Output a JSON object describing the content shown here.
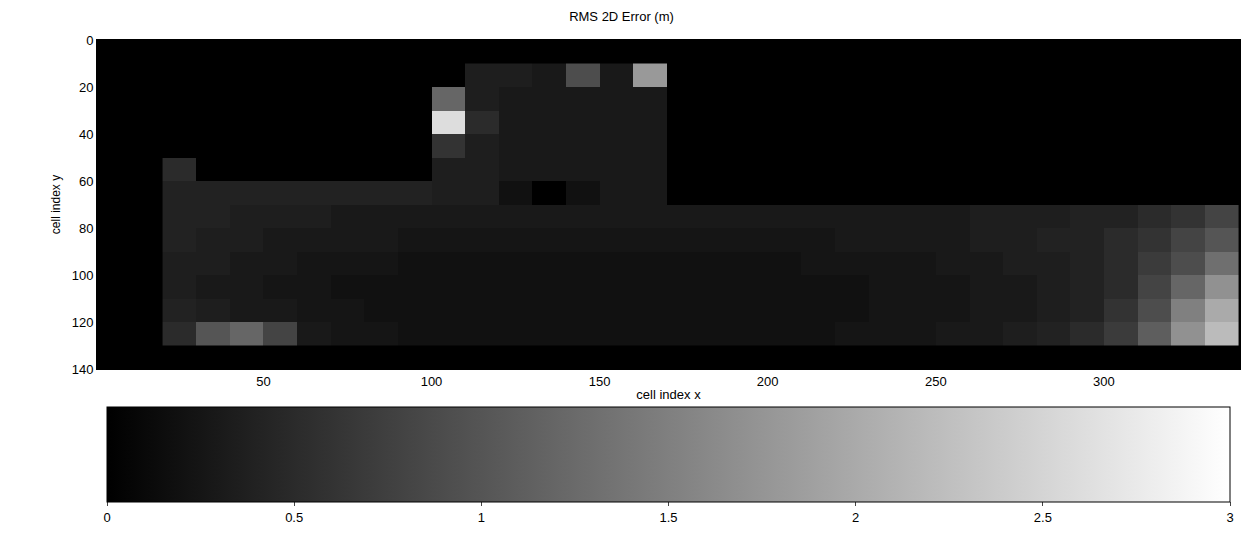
{
  "chart_data": {
    "type": "heatmap",
    "title": "RMS 2D Error (m)",
    "x_label": "cell index x",
    "y_label": "cell index y",
    "x": [
      25,
      35,
      45,
      55,
      65,
      75,
      85,
      95,
      105,
      115,
      125,
      135,
      145,
      155,
      165,
      175,
      185,
      195,
      205,
      215,
      225,
      235,
      245,
      255,
      265,
      275,
      285,
      295,
      305,
      315,
      325,
      335
    ],
    "y": [
      15,
      25,
      35,
      45,
      55,
      65,
      75,
      85,
      95,
      105,
      115,
      125
    ],
    "cells": [
      [
        null,
        null,
        null,
        null,
        null,
        null,
        null,
        null,
        null,
        0.35,
        0.35,
        0.3,
        0.9,
        0.3,
        1.8,
        null,
        null,
        null,
        null,
        null,
        null,
        null,
        null,
        null,
        null,
        null,
        null,
        null,
        null,
        null,
        null,
        null
      ],
      [
        null,
        null,
        null,
        null,
        null,
        null,
        null,
        null,
        1.2,
        0.35,
        0.3,
        0.3,
        0.3,
        0.3,
        0.3,
        null,
        null,
        null,
        null,
        null,
        null,
        null,
        null,
        null,
        null,
        null,
        null,
        null,
        null,
        null,
        null,
        null
      ],
      [
        null,
        null,
        null,
        null,
        null,
        null,
        null,
        null,
        2.6,
        0.5,
        0.3,
        0.3,
        0.3,
        0.3,
        0.3,
        null,
        null,
        null,
        null,
        null,
        null,
        null,
        null,
        null,
        null,
        null,
        null,
        null,
        null,
        null,
        null,
        null
      ],
      [
        null,
        null,
        null,
        null,
        null,
        null,
        null,
        null,
        0.6,
        0.35,
        0.3,
        0.3,
        0.3,
        0.3,
        0.3,
        null,
        null,
        null,
        null,
        null,
        null,
        null,
        null,
        null,
        null,
        null,
        null,
        null,
        null,
        null,
        null,
        null
      ],
      [
        0.5,
        null,
        null,
        null,
        null,
        null,
        null,
        null,
        0.35,
        0.35,
        0.3,
        0.3,
        0.3,
        0.3,
        0.3,
        null,
        null,
        null,
        null,
        null,
        null,
        null,
        null,
        null,
        null,
        null,
        null,
        null,
        null,
        null,
        null,
        null
      ],
      [
        0.4,
        0.4,
        0.4,
        0.4,
        0.4,
        0.4,
        0.4,
        0.4,
        0.35,
        0.35,
        0.2,
        null,
        0.2,
        0.3,
        0.3,
        null,
        null,
        null,
        null,
        null,
        null,
        null,
        null,
        null,
        null,
        null,
        null,
        null,
        null,
        null,
        null,
        null
      ],
      [
        0.4,
        0.4,
        0.35,
        0.35,
        0.35,
        0.3,
        0.3,
        0.3,
        0.3,
        0.3,
        0.3,
        0.3,
        0.3,
        0.3,
        0.3,
        0.3,
        0.3,
        0.3,
        0.3,
        0.3,
        0.3,
        0.3,
        0.3,
        0.3,
        0.35,
        0.35,
        0.35,
        0.4,
        0.4,
        0.5,
        0.6,
        0.8
      ],
      [
        0.4,
        0.35,
        0.35,
        0.3,
        0.3,
        0.3,
        0.3,
        0.25,
        0.25,
        0.25,
        0.25,
        0.25,
        0.25,
        0.25,
        0.25,
        0.25,
        0.25,
        0.25,
        0.25,
        0.25,
        0.3,
        0.3,
        0.3,
        0.3,
        0.35,
        0.35,
        0.4,
        0.4,
        0.5,
        0.6,
        0.8,
        1.0
      ],
      [
        0.35,
        0.35,
        0.3,
        0.3,
        0.25,
        0.25,
        0.25,
        0.2,
        0.2,
        0.2,
        0.2,
        0.2,
        0.2,
        0.2,
        0.2,
        0.2,
        0.2,
        0.2,
        0.2,
        0.25,
        0.25,
        0.25,
        0.25,
        0.3,
        0.3,
        0.35,
        0.35,
        0.4,
        0.5,
        0.7,
        0.9,
        1.3
      ],
      [
        0.35,
        0.3,
        0.3,
        0.25,
        0.25,
        0.2,
        0.2,
        0.2,
        0.2,
        0.2,
        0.2,
        0.2,
        0.2,
        0.2,
        0.2,
        0.2,
        0.2,
        0.2,
        0.2,
        0.2,
        0.2,
        0.25,
        0.25,
        0.25,
        0.3,
        0.3,
        0.35,
        0.4,
        0.5,
        0.8,
        1.2,
        1.7
      ],
      [
        0.4,
        0.35,
        0.3,
        0.3,
        0.25,
        0.25,
        0.2,
        0.2,
        0.2,
        0.2,
        0.2,
        0.2,
        0.2,
        0.2,
        0.2,
        0.2,
        0.2,
        0.2,
        0.2,
        0.2,
        0.2,
        0.25,
        0.25,
        0.25,
        0.3,
        0.3,
        0.35,
        0.4,
        0.6,
        0.9,
        1.5,
        2.0
      ],
      [
        0.5,
        1.0,
        1.2,
        0.8,
        0.3,
        0.25,
        0.25,
        0.2,
        0.2,
        0.2,
        0.2,
        0.2,
        0.2,
        0.2,
        0.2,
        0.2,
        0.2,
        0.2,
        0.2,
        0.2,
        0.25,
        0.25,
        0.25,
        0.3,
        0.3,
        0.35,
        0.4,
        0.5,
        0.7,
        1.1,
        1.7,
        2.2
      ]
    ],
    "xlim": [
      0.5,
      340.5
    ],
    "xticks": [
      50,
      100,
      150,
      200,
      250,
      300
    ],
    "ylim": [
      140,
      0
    ],
    "yticks": [
      0,
      20,
      40,
      60,
      80,
      100,
      120,
      140
    ],
    "colorbar_range": [
      0,
      3
    ],
    "colorbar_ticks": [
      0,
      0.5,
      1,
      1.5,
      2,
      2.5,
      3
    ],
    "grid": false
  }
}
